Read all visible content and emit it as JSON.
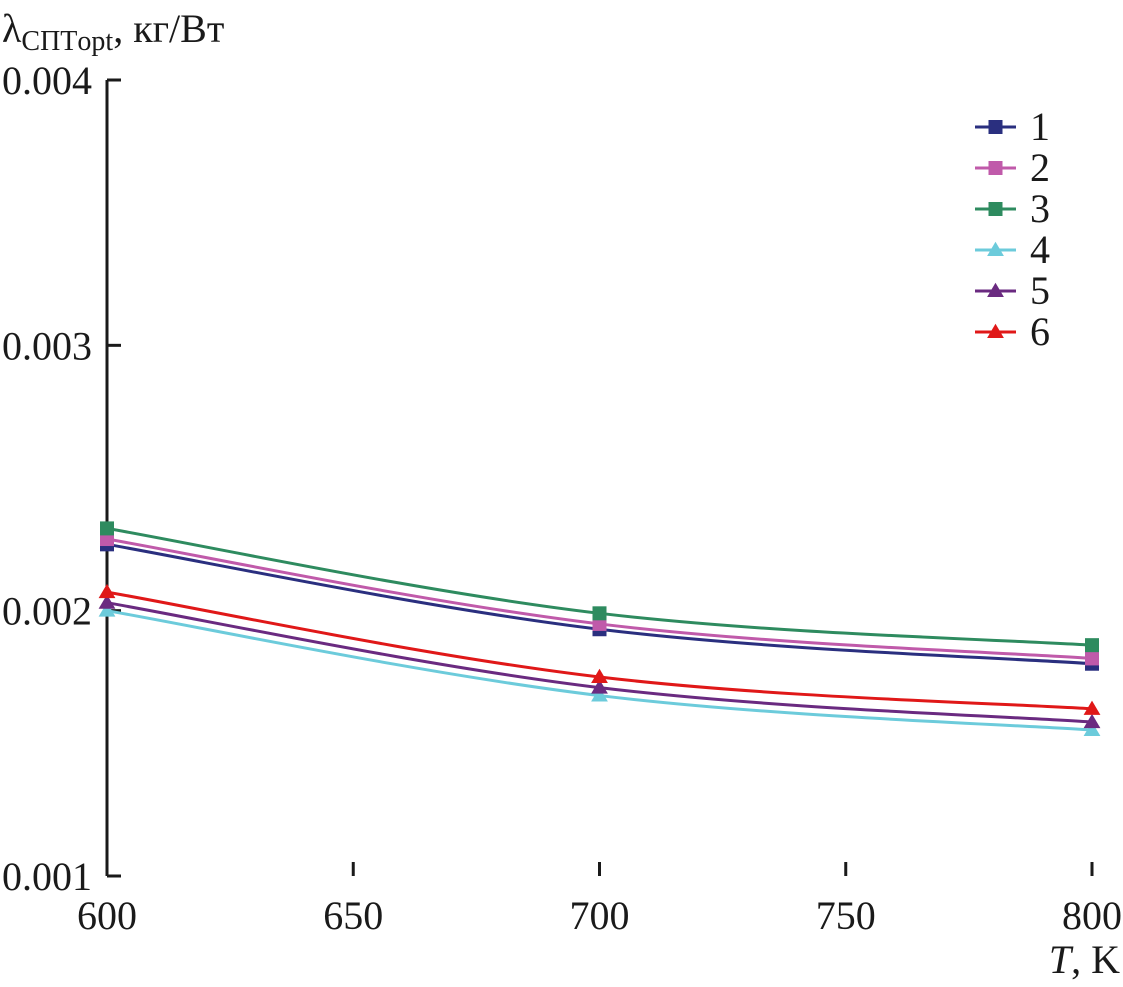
{
  "chart_data": {
    "type": "line",
    "ylabel": {
      "symbol": "λ",
      "subscript": "СПТopt",
      "unit": ", кг/Вт"
    },
    "xlabel": {
      "symbol": "T",
      "unit": ", K"
    },
    "xlim": [
      600,
      800
    ],
    "ylim": [
      0.001,
      0.004
    ],
    "x_ticks": [
      600,
      650,
      700,
      750,
      800
    ],
    "x_tick_labels": [
      "600",
      "650",
      "700",
      "750",
      "800"
    ],
    "y_ticks": [
      0.001,
      0.002,
      0.003,
      0.004
    ],
    "y_tick_labels": [
      "0.001",
      "0.002",
      "0.003",
      "0.004"
    ],
    "x": [
      600,
      700,
      800
    ],
    "legend_position": "top-right",
    "grid": false,
    "series": [
      {
        "name": "1",
        "values": [
          0.00225,
          0.00193,
          0.0018
        ],
        "color": "#2a2f7f",
        "marker": "square"
      },
      {
        "name": "2",
        "values": [
          0.00227,
          0.00195,
          0.00182
        ],
        "color": "#c05aaa",
        "marker": "square"
      },
      {
        "name": "3",
        "values": [
          0.00231,
          0.00199,
          0.00187
        ],
        "color": "#2e8b5f",
        "marker": "square"
      },
      {
        "name": "4",
        "values": [
          0.002,
          0.00168,
          0.00155
        ],
        "color": "#6ccbdb",
        "marker": "triangle"
      },
      {
        "name": "5",
        "values": [
          0.00203,
          0.00171,
          0.00158
        ],
        "color": "#6a2a80",
        "marker": "triangle"
      },
      {
        "name": "6",
        "values": [
          0.00207,
          0.00175,
          0.00163
        ],
        "color": "#e01818",
        "marker": "triangle"
      }
    ]
  }
}
